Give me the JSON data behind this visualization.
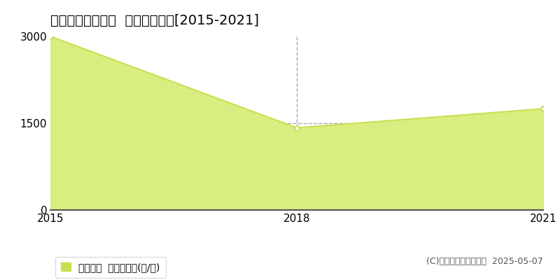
{
  "title": "新潟市南区東笠巻  農地価格推移[2015-2021]",
  "years": [
    2015,
    2018,
    2021
  ],
  "values": [
    3000,
    1420,
    1750
  ],
  "line_color": "#c8e050",
  "fill_color": "#d8ee80",
  "marker_color": "#ffffff",
  "marker_edge_color": "#c8e050",
  "xlim": [
    2015,
    2021
  ],
  "ylim": [
    0,
    3000
  ],
  "yticks": [
    0,
    1500,
    3000
  ],
  "xticks": [
    2015,
    2018,
    2021
  ],
  "legend_label": "農地価格  平均坪単価(円/坪)",
  "copyright_text": "(C)土地価格ドットコム  2025-05-07",
  "background_color": "#ffffff",
  "plot_bg_color": "#ffffff",
  "grid_color": "#aaaaaa",
  "title_fontsize": 14,
  "axis_fontsize": 11,
  "legend_fontsize": 10,
  "copyright_fontsize": 9
}
